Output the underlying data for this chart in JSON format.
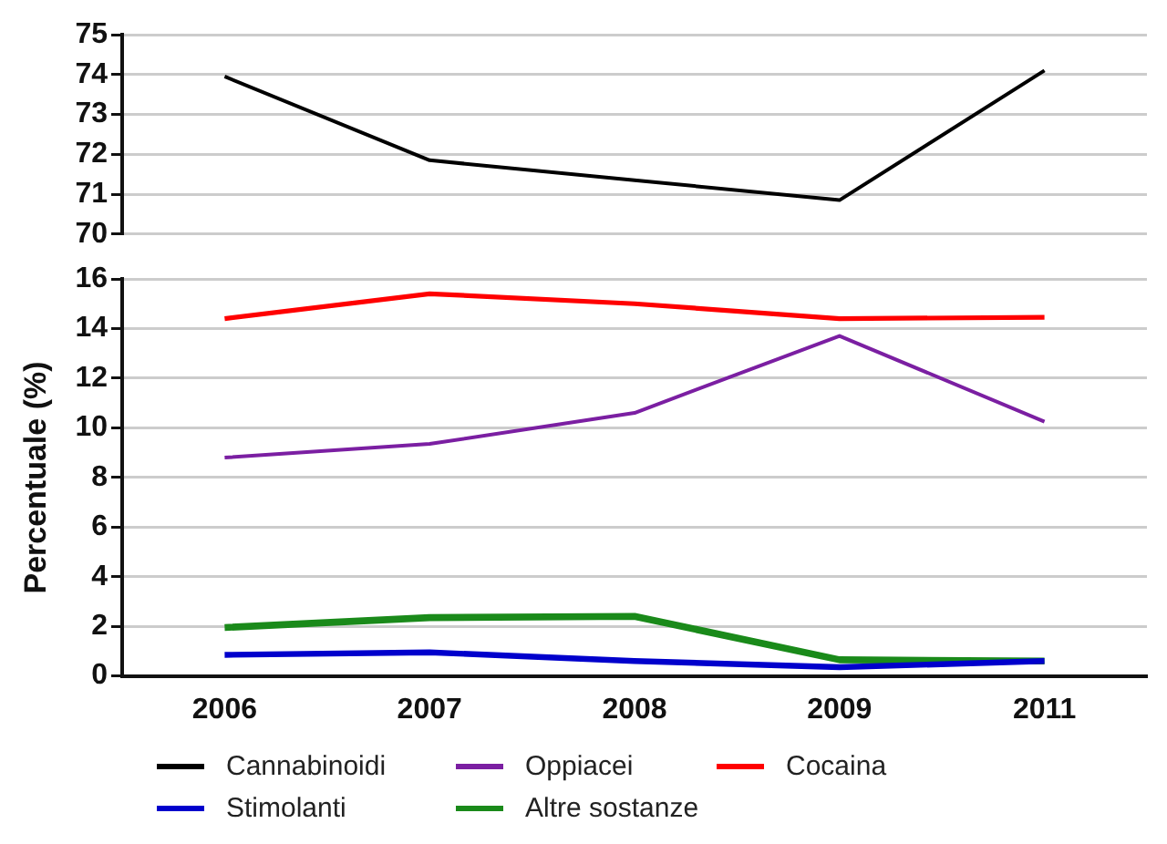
{
  "chart_data": [
    {
      "type": "line",
      "categories": [
        "2006",
        "2007",
        "2008",
        "2009",
        "2011"
      ],
      "ylim": [
        70,
        75
      ],
      "yticks": [
        70,
        71,
        72,
        73,
        74,
        75
      ],
      "grid": "y",
      "tick_labels": "y",
      "marker": "none",
      "line_style": "solid",
      "legend": "bottom",
      "series": [
        {
          "name": "Cannabinoidi",
          "color": "#000000",
          "values": [
            73.95,
            71.85,
            71.35,
            70.85,
            74.1
          ]
        }
      ]
    },
    {
      "type": "line",
      "categories": [
        "2006",
        "2007",
        "2008",
        "2009",
        "2011"
      ],
      "ylabel": "Percentuale (%)",
      "ylim": [
        0,
        16
      ],
      "yticks": [
        0,
        2,
        4,
        6,
        8,
        10,
        12,
        14,
        16
      ],
      "grid": "y",
      "marker": "none",
      "line_style": "solid",
      "legend": "bottom",
      "series": [
        {
          "name": "Oppiacei",
          "color": "#7b1fa2",
          "values": [
            8.8,
            9.35,
            10.6,
            13.7,
            10.25
          ]
        },
        {
          "name": "Cocaina",
          "color": "#ff0000",
          "values": [
            14.4,
            15.4,
            15.0,
            14.4,
            14.45
          ]
        },
        {
          "name": "Stimolanti",
          "color": "#0000cc",
          "values": [
            0.85,
            0.95,
            0.6,
            0.35,
            0.6
          ]
        },
        {
          "name": "Altre sostanze",
          "color": "#1a8a1a",
          "values": [
            1.95,
            2.35,
            2.4,
            0.65,
            0.6
          ]
        }
      ]
    }
  ]
}
